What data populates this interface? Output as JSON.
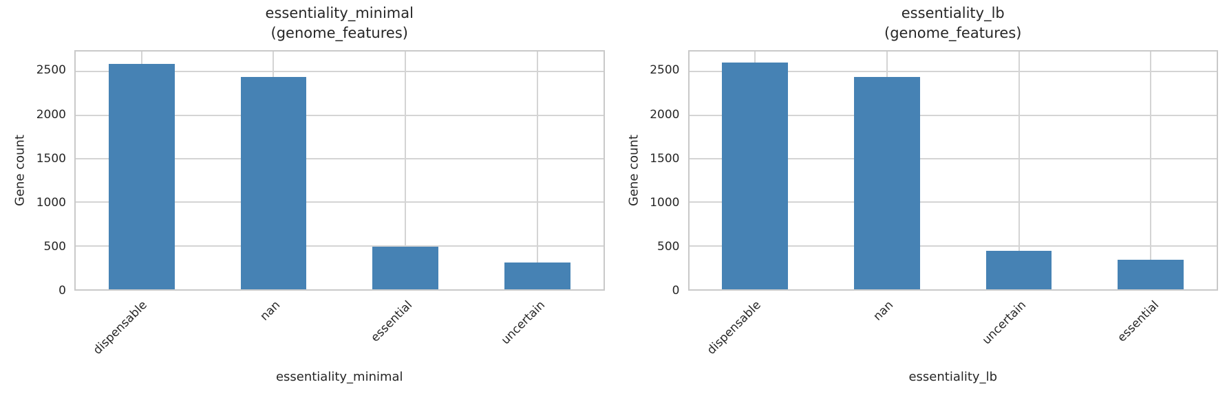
{
  "figure": {
    "background": "#ffffff",
    "bar_color": "#4682b4",
    "grid_color": "#d4d4d4",
    "spine_color": "#c9c9c9",
    "text_color": "#262626"
  },
  "chart_data": [
    {
      "type": "bar",
      "title_line1": "essentiality_minimal",
      "title_line2": "(genome_features)",
      "xlabel": "essentiality_minimal",
      "ylabel": "Gene count",
      "categories": [
        "dispensable",
        "nan",
        "essential",
        "uncertain"
      ],
      "values": [
        2590,
        2440,
        490,
        310
      ],
      "yticks": [
        0,
        500,
        1000,
        1500,
        2000,
        2500
      ],
      "ylim": [
        0,
        2730
      ],
      "grid": true,
      "legend": "none",
      "bar_color": "#4682b4"
    },
    {
      "type": "bar",
      "title_line1": "essentiality_lb",
      "title_line2": "(genome_features)",
      "xlabel": "essentiality_lb",
      "ylabel": "Gene count",
      "categories": [
        "dispensable",
        "nan",
        "uncertain",
        "essential"
      ],
      "values": [
        2600,
        2440,
        440,
        340
      ],
      "yticks": [
        0,
        500,
        1000,
        1500,
        2000,
        2500
      ],
      "ylim": [
        0,
        2730
      ],
      "grid": true,
      "legend": "none",
      "bar_color": "#4682b4"
    }
  ]
}
